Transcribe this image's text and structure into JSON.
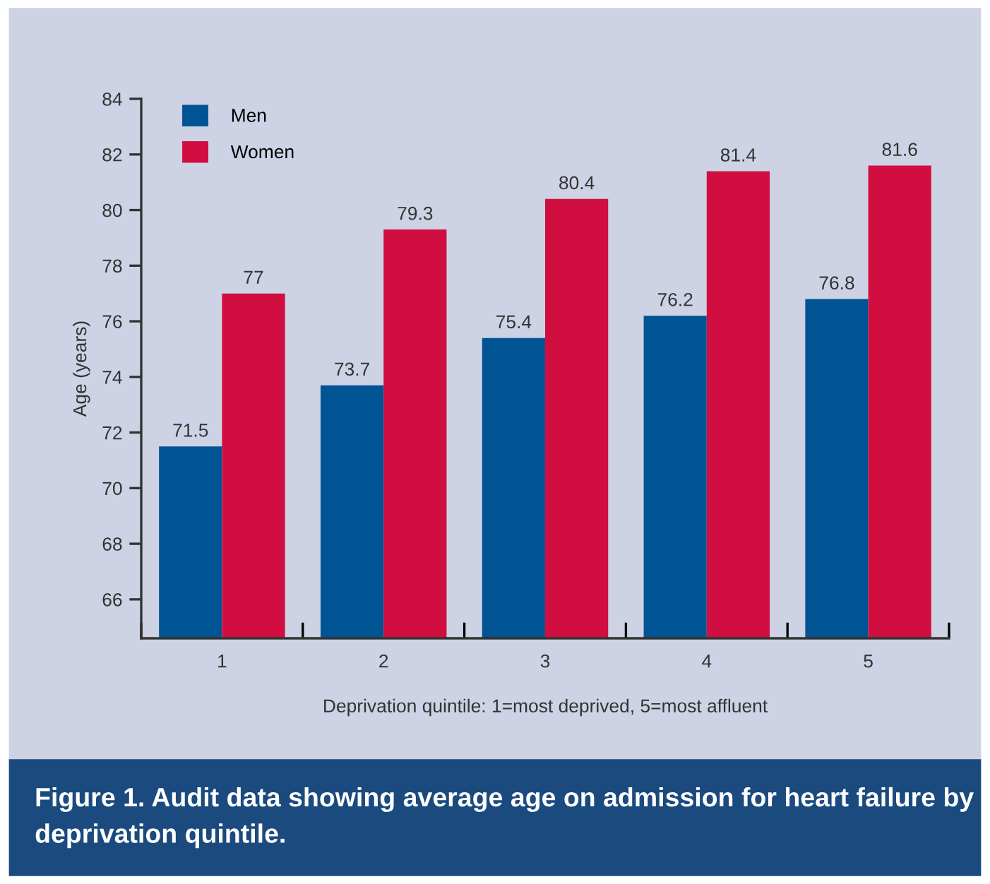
{
  "chart_data": {
    "type": "bar",
    "title": "Figure 1. Audit data showing average age on admission for heart failure by deprivation quintile.",
    "xlabel": "Deprivation quintile: 1=most deprived, 5=most affluent",
    "ylabel": "Age (years)",
    "categories": [
      "1",
      "2",
      "3",
      "4",
      "5"
    ],
    "series": [
      {
        "name": "Men",
        "color": "#005494",
        "values": [
          71.5,
          73.7,
          75.4,
          76.2,
          76.8
        ]
      },
      {
        "name": "Women",
        "color": "#d00f40",
        "values": [
          77,
          79.3,
          80.4,
          81.4,
          81.6
        ]
      }
    ],
    "ylim": [
      64.6,
      84
    ],
    "yticks": [
      66,
      68,
      70,
      72,
      74,
      76,
      78,
      80,
      82,
      84
    ],
    "data_labels": true,
    "legend": "top left",
    "grid": false
  }
}
